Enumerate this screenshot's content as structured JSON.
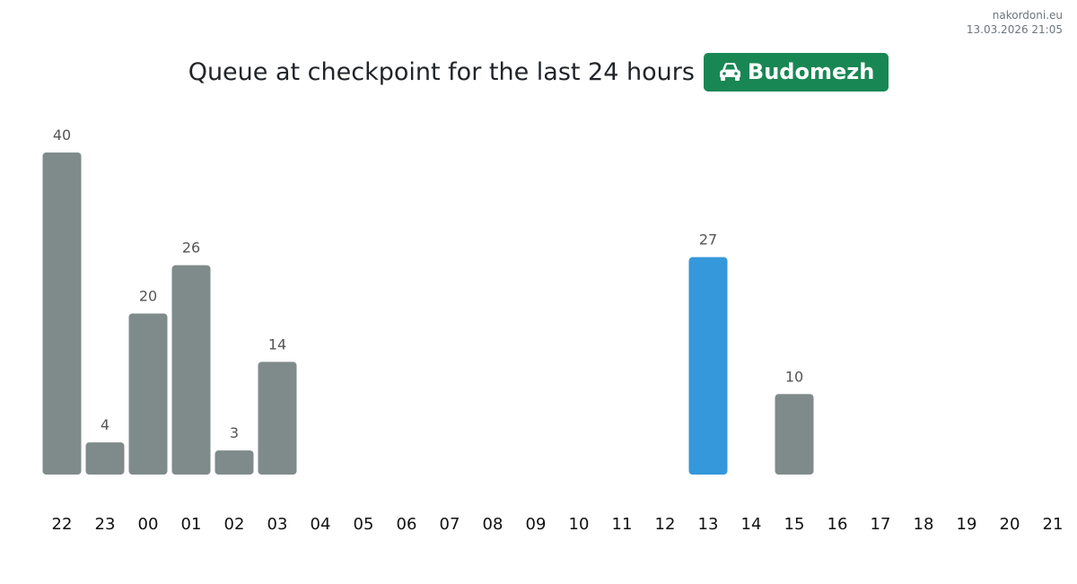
{
  "site": {
    "name": "nakordoni.eu",
    "timestamp": "13.03.2026 21:05"
  },
  "title": {
    "text": "Queue at checkpoint for the last 24 hours",
    "checkpoint": "Budomezh",
    "checkpoint_icon": "car-icon",
    "badge_color": "#198754"
  },
  "colors": {
    "bar": "#7f8b8b",
    "highlight": "#3498db"
  },
  "chart_data": {
    "type": "bar",
    "title": "Queue at checkpoint for the last 24 hours",
    "xlabel": "",
    "ylabel": "",
    "categories": [
      "22",
      "23",
      "00",
      "01",
      "02",
      "03",
      "04",
      "05",
      "06",
      "07",
      "08",
      "09",
      "10",
      "11",
      "12",
      "13",
      "14",
      "15",
      "16",
      "17",
      "18",
      "19",
      "20",
      "21"
    ],
    "values": [
      40,
      4,
      20,
      26,
      3,
      14,
      null,
      null,
      null,
      null,
      null,
      null,
      null,
      null,
      null,
      27,
      null,
      10,
      null,
      null,
      null,
      null,
      null,
      null
    ],
    "highlight_category": "13",
    "ylim": [
      0,
      40
    ],
    "grid": false,
    "legend": "none"
  }
}
